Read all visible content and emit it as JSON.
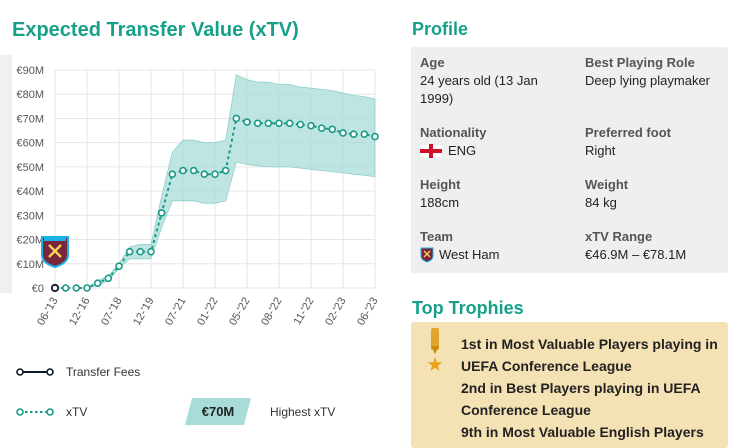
{
  "chart_title": "Expected Transfer Value (xTV)",
  "chart_data": {
    "type": "line",
    "title": "Expected Transfer Value (xTV)",
    "ylim": [
      0,
      90
    ],
    "y_unit": "€M",
    "y_ticks": [
      "€0",
      "€10M",
      "€20M",
      "€30M",
      "€40M",
      "€50M",
      "€60M",
      "€70M",
      "€80M",
      "€90M"
    ],
    "x_tick_labels": [
      "06-'13",
      "12-'16",
      "07-'18",
      "12-'19",
      "07-'21",
      "01-'22",
      "05-'22",
      "08-'22",
      "11-'22",
      "02-'23",
      "06-'23"
    ],
    "grid": true,
    "legend_position": "bottom",
    "series": [
      {
        "name": "Transfer Fees",
        "style": "solid",
        "color": "#0d1b2a",
        "values": [
          0
        ]
      },
      {
        "name": "xTV",
        "style": "dotted",
        "color": "#1a9987",
        "values": [
          0,
          0,
          0,
          0,
          2,
          4,
          9,
          15,
          15,
          15,
          31,
          47,
          48.5,
          48.5,
          47,
          47,
          48.5,
          70,
          68.5,
          68,
          68,
          68,
          68,
          67.5,
          67,
          66,
          65.5,
          64,
          63.5,
          63.5,
          62.5
        ],
        "band_upper": [
          0,
          0,
          0,
          0,
          3,
          5,
          10,
          17,
          18,
          18,
          38,
          56,
          61,
          61,
          60,
          60,
          61,
          88,
          86,
          85,
          85,
          84,
          84,
          83,
          82.5,
          82,
          81.5,
          80.5,
          79.5,
          79,
          78
        ],
        "band_lower": [
          0,
          0,
          0,
          0,
          1,
          3,
          8,
          12,
          12,
          12,
          25,
          36,
          36,
          36,
          35,
          35,
          36,
          52,
          51,
          50.5,
          50,
          50,
          50,
          49.5,
          49,
          48.5,
          48,
          47.5,
          47,
          46.5,
          46
        ]
      }
    ],
    "highest_xtv": "€70M"
  },
  "legend": {
    "transfer_fees": "Transfer Fees",
    "xtv": "xTV",
    "highest_label": "Highest xTV",
    "highest_value": "€70M"
  },
  "profile": {
    "title": "Profile",
    "age_label": "Age",
    "age_value": "24 years old (13 Jan 1999)",
    "role_label": "Best Playing Role",
    "role_value": "Deep lying playmaker",
    "nationality_label": "Nationality",
    "nationality_value": "ENG",
    "foot_label": "Preferred foot",
    "foot_value": "Right",
    "height_label": "Height",
    "height_value": "188cm",
    "weight_label": "Weight",
    "weight_value": "84 kg",
    "team_label": "Team",
    "team_value": "West Ham",
    "range_label": "xTV Range",
    "range_value": "€46.9M – €78.1M"
  },
  "trophies": {
    "title": "Top Trophies",
    "items": [
      "1st in Most Valuable Players playing in UEFA Conference League",
      "2nd in Best Players playing in UEFA Conference League",
      "9th in Most Valuable English Players"
    ]
  },
  "colors": {
    "accent": "#17a08a",
    "line": "#1a9987",
    "band": "#a8dcd8",
    "profile_bg": "#efefef",
    "trophy_bg": "#f4e1b4"
  }
}
